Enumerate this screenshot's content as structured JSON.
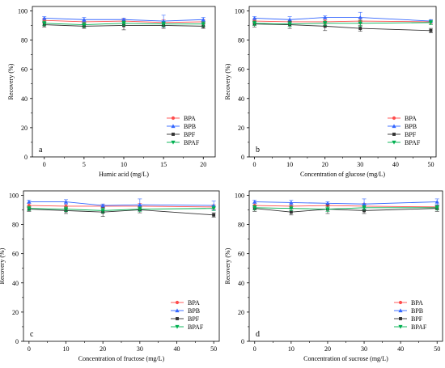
{
  "chart_data": [
    {
      "panel_label": "a",
      "type": "line",
      "xlabel": "Humic acid (mg/L)",
      "ylabel": "Recovery (%)",
      "x": [
        0,
        5,
        10,
        15,
        20
      ],
      "xticks": [
        0,
        5,
        10,
        15,
        20
      ],
      "xlim": [
        -1.5,
        21.5
      ],
      "ylim": [
        0,
        103
      ],
      "yticks": [
        0,
        20,
        40,
        60,
        80,
        100
      ],
      "legend_position": "bottom-right",
      "series": [
        {
          "name": "BPA",
          "color": "#ff4d4d",
          "marker": "circle",
          "values": [
            93.5,
            92.5,
            93,
            92,
            92.5
          ],
          "errors": [
            1.5,
            1.5,
            1.5,
            2,
            1.5
          ]
        },
        {
          "name": "BPB",
          "color": "#3366ff",
          "marker": "triangle-up",
          "values": [
            95,
            94,
            94,
            93,
            94
          ],
          "errors": [
            1,
            1.5,
            1,
            4,
            1.5
          ]
        },
        {
          "name": "BPF",
          "color": "#333333",
          "marker": "square",
          "values": [
            90.5,
            89.5,
            90,
            90,
            89.5
          ],
          "errors": [
            1.5,
            1.5,
            3,
            2,
            1.5
          ]
        },
        {
          "name": "BPAF",
          "color": "#00b050",
          "marker": "triangle-down",
          "values": [
            91.5,
            90.5,
            91.5,
            91,
            91
          ],
          "errors": [
            1.5,
            1.5,
            1.5,
            1.5,
            1.5
          ]
        }
      ]
    },
    {
      "panel_label": "b",
      "type": "line",
      "xlabel": "Concentration of glucose  (mg/L)",
      "ylabel": "Recovery (%)",
      "x": [
        0,
        10,
        20,
        30,
        50
      ],
      "xticks": [
        0,
        10,
        20,
        30,
        40,
        50
      ],
      "xlim": [
        -1.5,
        51.5
      ],
      "ylim": [
        0,
        103
      ],
      "yticks": [
        0,
        20,
        40,
        60,
        80,
        100
      ],
      "legend_position": "bottom-right",
      "series": [
        {
          "name": "BPA",
          "color": "#ff4d4d",
          "marker": "circle",
          "values": [
            93,
            92.5,
            92.5,
            93,
            92.5
          ],
          "errors": [
            1.5,
            1.5,
            1.5,
            2,
            1.5
          ]
        },
        {
          "name": "BPB",
          "color": "#3366ff",
          "marker": "triangle-up",
          "values": [
            95,
            94,
            95.5,
            95.5,
            93
          ],
          "errors": [
            1,
            2,
            1,
            3.5,
            1
          ]
        },
        {
          "name": "BPF",
          "color": "#333333",
          "marker": "square",
          "values": [
            91,
            90.5,
            89.5,
            88,
            86.5
          ],
          "errors": [
            2,
            2.5,
            3,
            2,
            1.5
          ]
        },
        {
          "name": "BPAF",
          "color": "#00b050",
          "marker": "triangle-down",
          "values": [
            91.5,
            91,
            91.5,
            91.5,
            92
          ],
          "errors": [
            1.5,
            1.5,
            1.5,
            2,
            1.5
          ]
        }
      ]
    },
    {
      "panel_label": "c",
      "type": "line",
      "xlabel": "Concentration of fructose   (mg/L)",
      "ylabel": "Recovery (%)",
      "x": [
        0,
        10,
        20,
        30,
        50
      ],
      "xticks": [
        0,
        10,
        20,
        30,
        40,
        50
      ],
      "xlim": [
        -1.5,
        51.5
      ],
      "ylim": [
        0,
        103
      ],
      "yticks": [
        0,
        20,
        40,
        60,
        80,
        100
      ],
      "legend_position": "bottom-right",
      "series": [
        {
          "name": "BPA",
          "color": "#ff4d4d",
          "marker": "circle",
          "values": [
            93,
            92.5,
            92.5,
            92.5,
            92
          ],
          "errors": [
            1.5,
            1.5,
            1.5,
            2,
            1.5
          ]
        },
        {
          "name": "BPB",
          "color": "#3366ff",
          "marker": "triangle-up",
          "values": [
            95.5,
            95.5,
            93,
            93.5,
            93
          ],
          "errors": [
            1,
            1.5,
            1,
            4,
            3
          ]
        },
        {
          "name": "BPF",
          "color": "#333333",
          "marker": "square",
          "values": [
            90.5,
            89.5,
            88.5,
            90,
            86.5
          ],
          "errors": [
            1.5,
            2,
            3,
            2,
            1.5
          ]
        },
        {
          "name": "BPAF",
          "color": "#00b050",
          "marker": "triangle-down",
          "values": [
            91,
            90.5,
            89.5,
            90.5,
            91
          ],
          "errors": [
            1.5,
            1.5,
            1.5,
            1.5,
            1.5
          ]
        }
      ]
    },
    {
      "panel_label": "d",
      "type": "line",
      "xlabel": "Concentration of sucrose   (mg/L)",
      "ylabel": "Recovery (%)",
      "x": [
        0,
        10,
        20,
        30,
        50
      ],
      "xticks": [
        0,
        10,
        20,
        30,
        40,
        50
      ],
      "xlim": [
        -1.5,
        51.5
      ],
      "ylim": [
        0,
        103
      ],
      "yticks": [
        0,
        20,
        40,
        60,
        80,
        100
      ],
      "legend_position": "bottom-right",
      "series": [
        {
          "name": "BPA",
          "color": "#ff4d4d",
          "marker": "circle",
          "values": [
            93,
            92.5,
            93,
            92.5,
            92
          ],
          "errors": [
            1.5,
            1.5,
            1.5,
            2,
            1.5
          ]
        },
        {
          "name": "BPB",
          "color": "#3366ff",
          "marker": "triangle-up",
          "values": [
            95.5,
            95,
            94.5,
            94,
            95.5
          ],
          "errors": [
            1,
            1.5,
            1,
            3.5,
            2
          ]
        },
        {
          "name": "BPF",
          "color": "#333333",
          "marker": "square",
          "values": [
            91,
            88.5,
            90.5,
            89.5,
            91
          ],
          "errors": [
            2,
            2,
            3,
            2,
            2
          ]
        },
        {
          "name": "BPAF",
          "color": "#00b050",
          "marker": "triangle-down",
          "values": [
            91.5,
            91,
            90.5,
            91.5,
            91.5
          ],
          "errors": [
            1.5,
            1.5,
            1.5,
            1.5,
            1.5
          ]
        }
      ]
    }
  ]
}
